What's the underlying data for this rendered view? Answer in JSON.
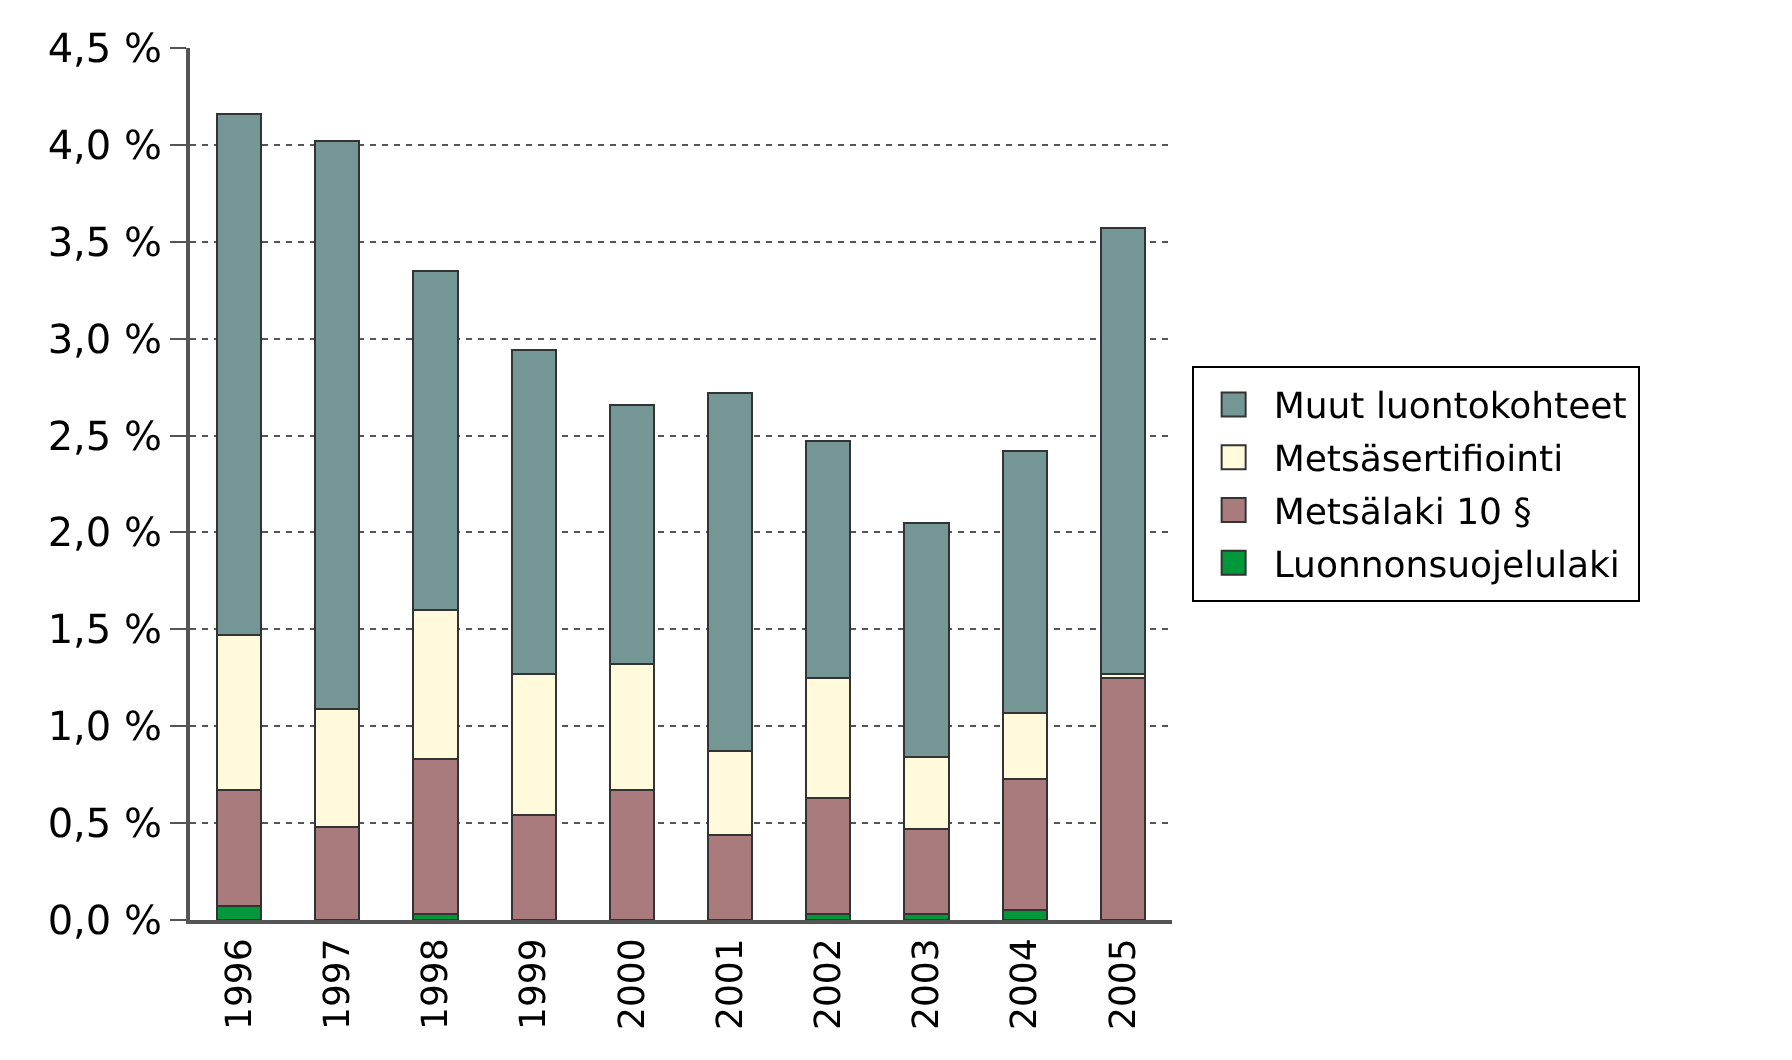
{
  "chart_data": {
    "type": "bar",
    "stacked": true,
    "categories": [
      "1996",
      "1997",
      "1998",
      "1999",
      "2000",
      "2001",
      "2002",
      "2003",
      "2004",
      "2005"
    ],
    "series": [
      {
        "name": "Luonnonsuojelulaki",
        "color": "#00983a",
        "values": [
          0.07,
          0,
          0.03,
          null,
          null,
          0,
          0.03,
          0.03,
          0.05,
          null
        ]
      },
      {
        "name": "Metsälaki 10 §",
        "color": "#a97b7c",
        "values": [
          0.6,
          0.48,
          0.8,
          0.54,
          0.67,
          0.44,
          0.6,
          0.44,
          0.68,
          1.25
        ]
      },
      {
        "name": "Metsäsertifiointi",
        "color": "#fffadc",
        "values": [
          0.8,
          0.61,
          0.77,
          0.73,
          0.65,
          0.43,
          0.62,
          0.37,
          0.34,
          0.02
        ]
      },
      {
        "name": "Muut luontokohteet",
        "color": "#749694",
        "values": [
          2.69,
          2.93,
          1.75,
          1.67,
          1.34,
          1.85,
          1.22,
          1.21,
          1.35,
          2.3
        ]
      }
    ],
    "ylim": [
      0,
      4.5
    ],
    "yticks": [
      {
        "value": 0,
        "label": "0,0 %"
      },
      {
        "value": 0.5,
        "label": "0,5 %"
      },
      {
        "value": 1,
        "label": "1,0 %"
      },
      {
        "value": 1.5,
        "label": "1,5 %"
      },
      {
        "value": 2,
        "label": "2,0 %"
      },
      {
        "value": 2.5,
        "label": "2,5 %"
      },
      {
        "value": 3,
        "label": "3,0 %"
      },
      {
        "value": 3.5,
        "label": "3,5 %"
      },
      {
        "value": 4,
        "label": "4,0 %"
      },
      {
        "value": 4.5,
        "label": "4,5 %"
      }
    ],
    "grid": "y",
    "legend": "right"
  }
}
